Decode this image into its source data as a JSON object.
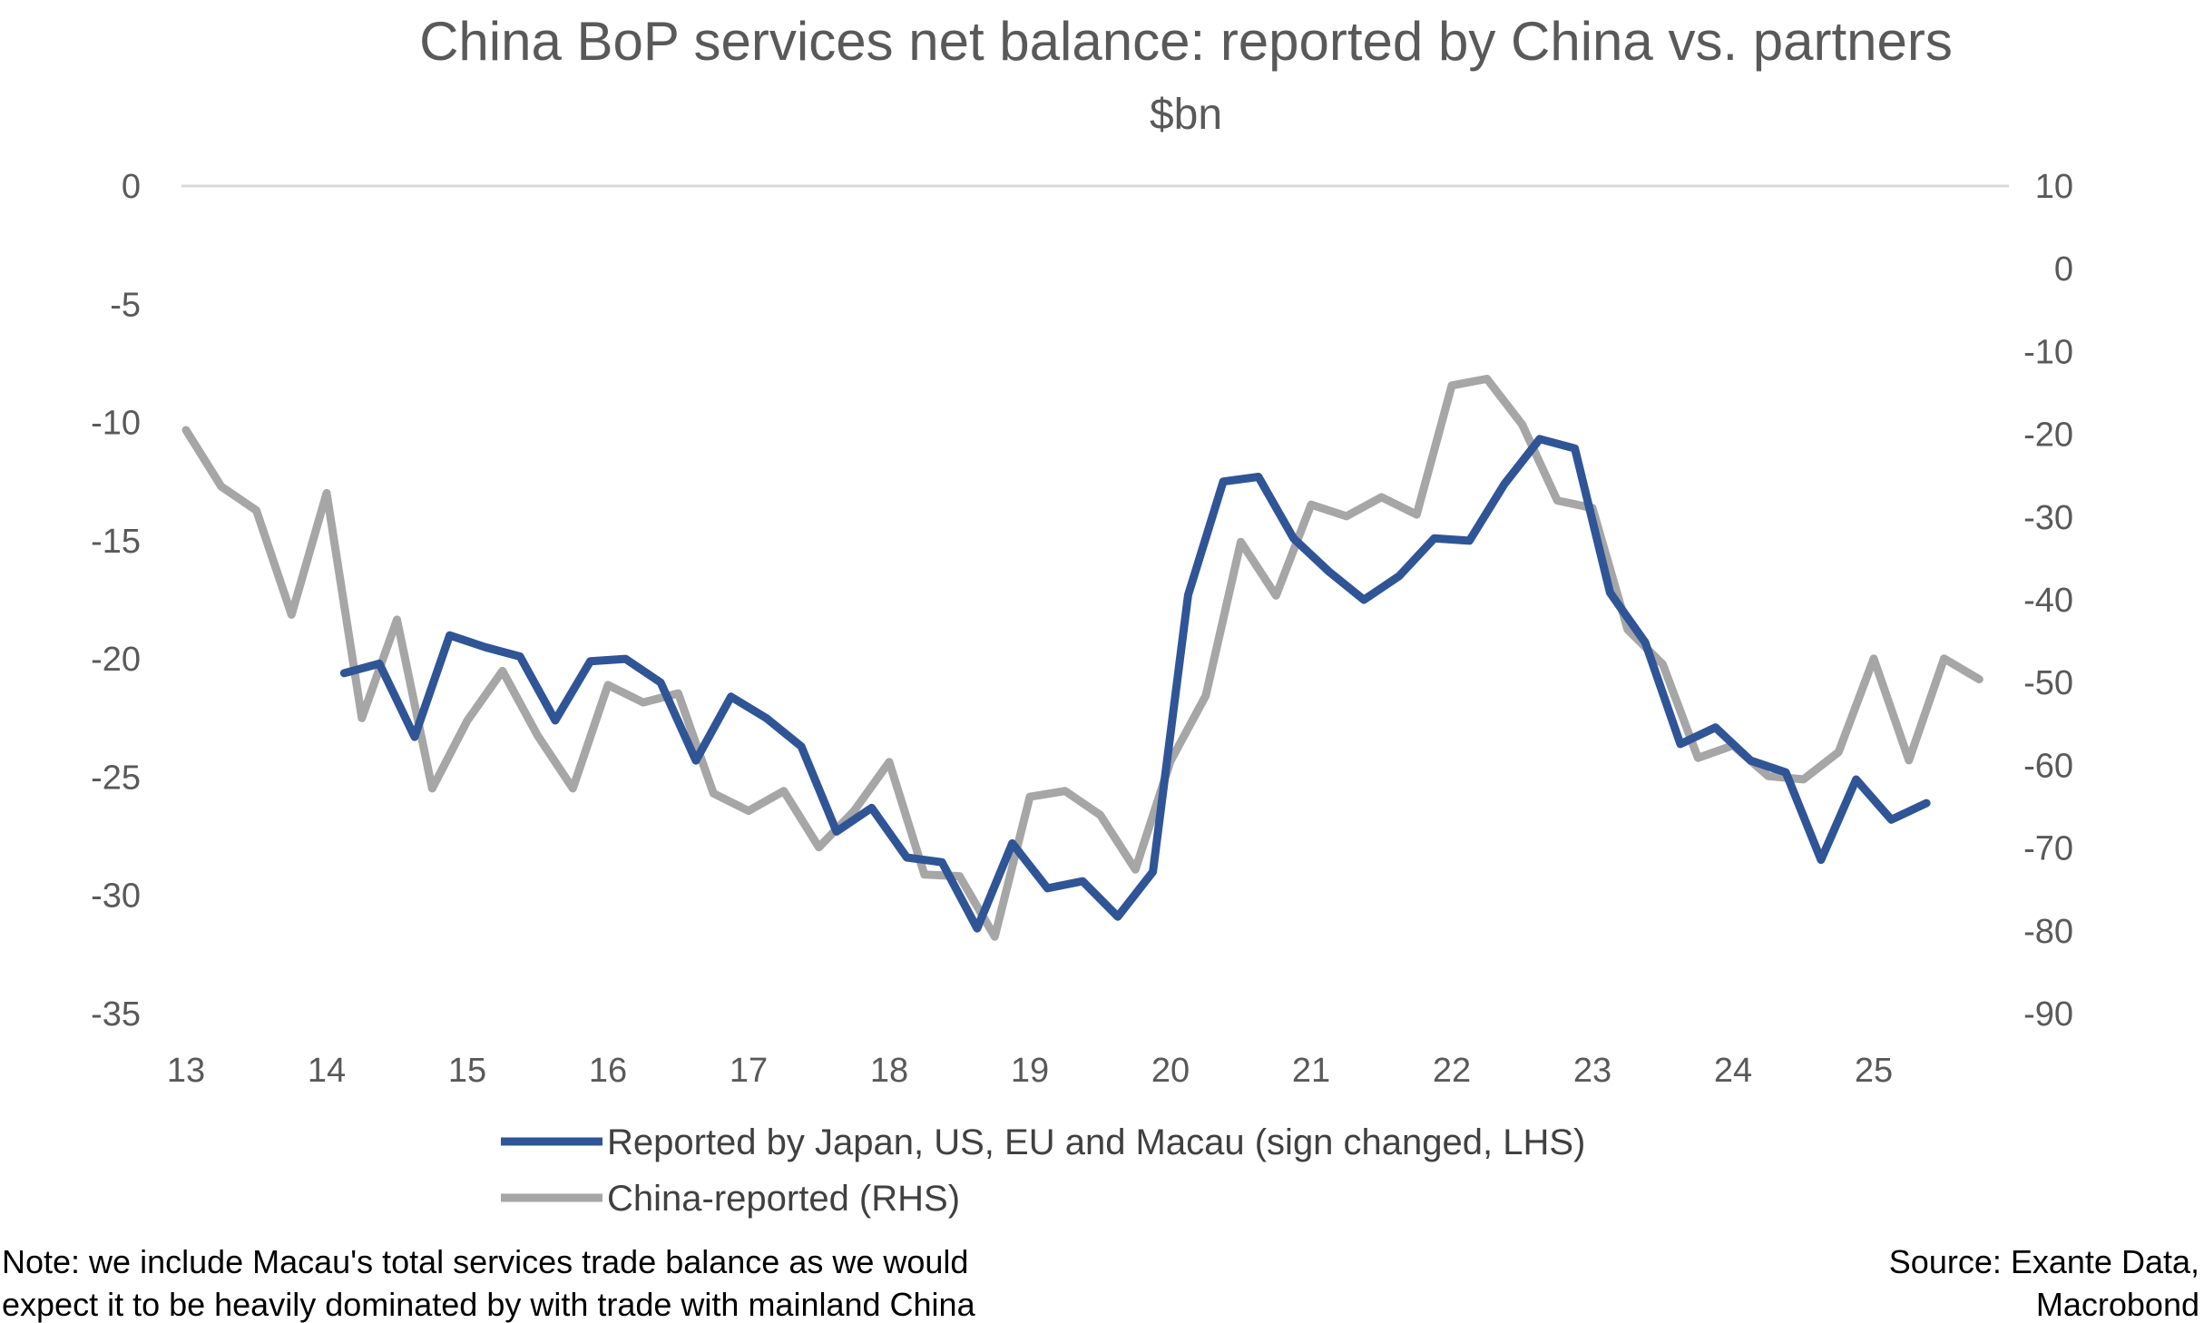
{
  "chart_data": {
    "type": "line",
    "title": "China BoP services net balance: reported by China vs. partners",
    "subtitle": "$bn",
    "x_tick_labels": [
      "13",
      "14",
      "15",
      "16",
      "17",
      "18",
      "19",
      "20",
      "21",
      "22",
      "23",
      "24",
      "25"
    ],
    "x_range": [
      2013.0,
      2025.95
    ],
    "y_left": {
      "range": [
        -35,
        0
      ],
      "ticks": [
        0,
        -5,
        -10,
        -15,
        -20,
        -25,
        -30,
        -35
      ]
    },
    "y_right": {
      "range": [
        -90,
        10
      ],
      "ticks": [
        10,
        0,
        -10,
        -20,
        -30,
        -40,
        -50,
        -60,
        -70,
        -80,
        -90
      ]
    },
    "grid": false,
    "legend_position": "bottom",
    "series": [
      {
        "name": "Reported by Japan, US, EU and Macau (sign changed, LHS)",
        "axis": "left",
        "color": "#2f5597",
        "x": [
          2014.125,
          2014.375,
          2014.625,
          2014.875,
          2015.125,
          2015.375,
          2015.625,
          2015.875,
          2016.125,
          2016.375,
          2016.625,
          2016.875,
          2017.125,
          2017.375,
          2017.625,
          2017.875,
          2018.125,
          2018.375,
          2018.625,
          2018.875,
          2019.125,
          2019.375,
          2019.625,
          2019.875,
          2020.125,
          2020.375,
          2020.625,
          2020.875,
          2021.125,
          2021.375,
          2021.625,
          2021.875,
          2022.125,
          2022.375,
          2022.625,
          2022.875,
          2023.125,
          2023.375,
          2023.625,
          2023.875,
          2024.125,
          2024.375,
          2024.625,
          2024.875,
          2025.125,
          2025.375
        ],
        "values": [
          -20.6,
          -20.2,
          -23.3,
          -19.0,
          -19.5,
          -19.9,
          -22.6,
          -20.1,
          -20.0,
          -21.0,
          -24.3,
          -21.6,
          -22.5,
          -23.7,
          -27.3,
          -26.3,
          -28.4,
          -28.6,
          -31.4,
          -27.8,
          -29.7,
          -29.4,
          -30.9,
          -29.0,
          -17.3,
          -12.5,
          -12.3,
          -14.9,
          -16.3,
          -17.5,
          -16.5,
          -14.9,
          -15.0,
          -12.6,
          -10.7,
          -11.1,
          -17.2,
          -19.3,
          -23.6,
          -22.9,
          -24.3,
          -24.8,
          -28.5,
          -25.1,
          -26.8,
          -26.1
        ]
      },
      {
        "name": "China-reported (RHS)",
        "axis": "right",
        "color": "#a6a6a6",
        "x": [
          2013.0,
          2013.25,
          2013.5,
          2013.75,
          2014.0,
          2014.25,
          2014.5,
          2014.75,
          2015.0,
          2015.25,
          2015.5,
          2015.75,
          2016.0,
          2016.25,
          2016.5,
          2016.75,
          2017.0,
          2017.25,
          2017.5,
          2017.75,
          2018.0,
          2018.25,
          2018.5,
          2018.75,
          2019.0,
          2019.25,
          2019.5,
          2019.75,
          2020.0,
          2020.25,
          2020.5,
          2020.75,
          2021.0,
          2021.25,
          2021.5,
          2021.75,
          2022.0,
          2022.25,
          2022.5,
          2022.75,
          2023.0,
          2023.25,
          2023.5,
          2023.75,
          2024.0,
          2024.25,
          2024.5,
          2024.75,
          2025.0,
          2025.25,
          2025.5,
          2025.75
        ],
        "values": [
          -19.5,
          -26.3,
          -29.2,
          -41.8,
          -27.1,
          -54.3,
          -42.4,
          -62.8,
          -54.6,
          -48.6,
          -56.4,
          -62.8,
          -50.3,
          -52.4,
          -51.3,
          -63.4,
          -65.5,
          -63.1,
          -69.9,
          -65.5,
          -59.6,
          -73.2,
          -73.4,
          -80.7,
          -63.8,
          -63.1,
          -66.0,
          -72.6,
          -59.5,
          -51.6,
          -33.0,
          -39.5,
          -28.5,
          -29.9,
          -27.6,
          -29.7,
          -14.1,
          -13.3,
          -18.8,
          -28.0,
          -28.9,
          -43.6,
          -47.8,
          -59.1,
          -57.6,
          -61.3,
          -61.7,
          -58.4,
          -47.1,
          -59.4,
          -47.1,
          -49.6
        ]
      }
    ]
  },
  "note": {
    "line1": "Note: we include Macau's total services trade balance as we would",
    "line2": "expect it to be heavily dominated by with trade with mainland China"
  },
  "source": {
    "line1": "Source: Exante Data,",
    "line2": "Macrobond"
  }
}
